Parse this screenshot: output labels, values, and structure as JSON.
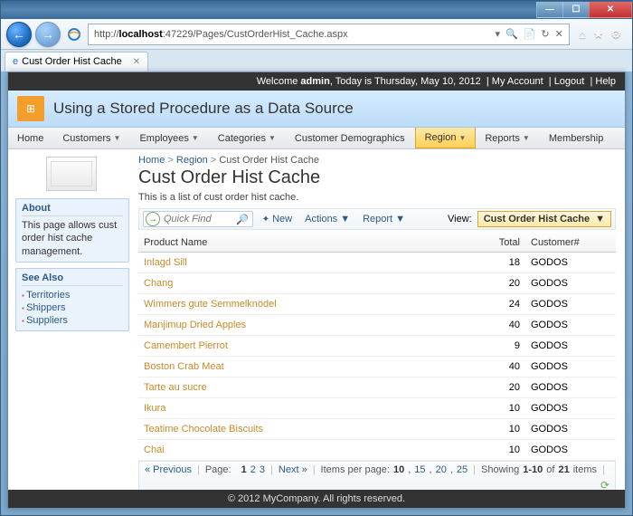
{
  "window": {
    "tab_title": "Cust Order Hist Cache",
    "url_prefix": "http://",
    "url_host": "localhost",
    "url_rest": ":47229/Pages/CustOrderHist_Cache.aspx"
  },
  "blackbar": {
    "welcome_pre": "Welcome ",
    "welcome_user": "admin",
    "welcome_post": ", Today is Thursday, May 10, 2012",
    "my_account": "My Account",
    "logout": "Logout",
    "help": "Help"
  },
  "header": {
    "title": "Using a Stored Procedure as a Data Source"
  },
  "menu": {
    "home": "Home",
    "customers": "Customers",
    "employees": "Employees",
    "categories": "Categories",
    "custdemo": "Customer Demographics",
    "region": "Region",
    "reports": "Reports",
    "membership": "Membership"
  },
  "sidebar": {
    "about_h": "About",
    "about_text": "This page allows cust order hist cache management.",
    "seealso_h": "See Also",
    "links": {
      "0": "Territories",
      "1": "Shippers",
      "2": "Suppliers"
    }
  },
  "breadcrumb": {
    "home": "Home",
    "region": "Region",
    "current": "Cust Order Hist Cache"
  },
  "page": {
    "title": "Cust Order Hist Cache",
    "desc": "This is a list of cust order hist cache."
  },
  "toolbar": {
    "quickfind": "Quick Find",
    "new": "New",
    "actions": "Actions",
    "report": "Report",
    "view_label": "View:",
    "view_value": "Cust Order Hist Cache"
  },
  "grid": {
    "cols": {
      "product": "Product Name",
      "total": "Total",
      "customer": "Customer#"
    },
    "rows": {
      "0": {
        "p": "Inlagd Sill",
        "t": "18",
        "c": "GODOS"
      },
      "1": {
        "p": "Chang",
        "t": "20",
        "c": "GODOS"
      },
      "2": {
        "p": "Wimmers gute Semmelknödel",
        "t": "24",
        "c": "GODOS"
      },
      "3": {
        "p": "Manjimup Dried Apples",
        "t": "40",
        "c": "GODOS"
      },
      "4": {
        "p": "Camembert Pierrot",
        "t": "9",
        "c": "GODOS"
      },
      "5": {
        "p": "Boston Crab Meat",
        "t": "40",
        "c": "GODOS"
      },
      "6": {
        "p": "Tarte au sucre",
        "t": "20",
        "c": "GODOS"
      },
      "7": {
        "p": "Ikura",
        "t": "10",
        "c": "GODOS"
      },
      "8": {
        "p": "Teatime Chocolate Biscuits",
        "t": "10",
        "c": "GODOS"
      },
      "9": {
        "p": "Chai",
        "t": "10",
        "c": "GODOS"
      }
    }
  },
  "pager": {
    "prev": "« Previous",
    "page_lbl": "Page:",
    "p1": "1",
    "p2": "2",
    "p3": "3",
    "next": "Next »",
    "ipp_lbl": "Items per page:",
    "ipp10": "10",
    "ipp15": "15",
    "ipp20": "20",
    "ipp25": "25",
    "showing_pre": "Showing ",
    "showing_range": "1-10",
    "showing_mid": " of ",
    "showing_total": "21",
    "showing_post": " items"
  },
  "footer": {
    "text": "© 2012 MyCompany. All rights reserved."
  }
}
